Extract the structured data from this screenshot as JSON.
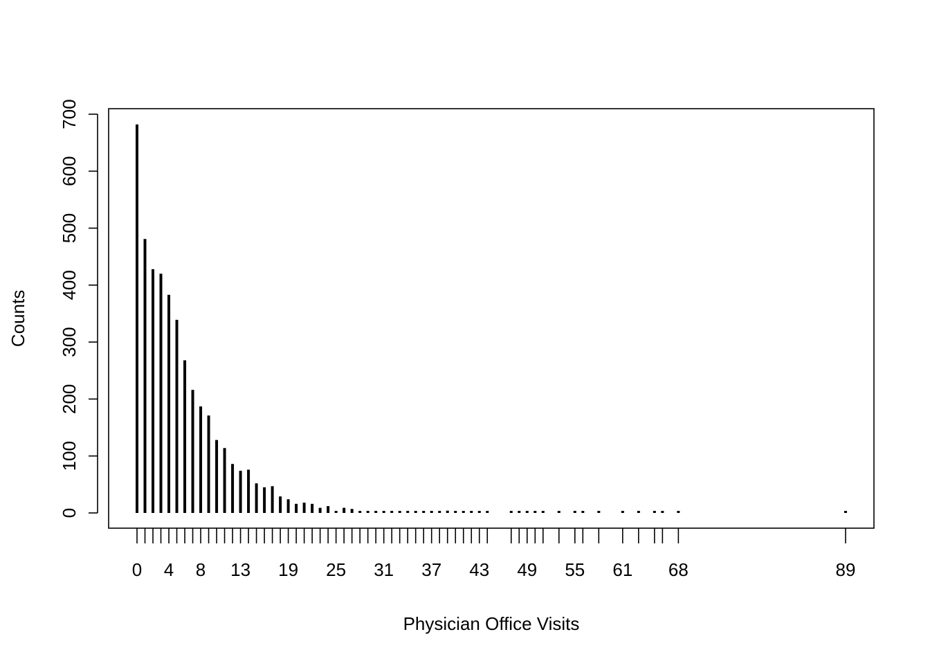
{
  "chart_data": {
    "type": "bar",
    "title": "",
    "xlabel": "Physician Office Visits",
    "ylabel": "Counts",
    "ylim": [
      0,
      700
    ],
    "yticks": [
      0,
      100,
      200,
      300,
      400,
      500,
      600,
      700
    ],
    "xlim": [
      -0.5,
      89.5
    ],
    "x_tick_labels": [
      "0",
      "4",
      "8",
      "13",
      "19",
      "25",
      "31",
      "37",
      "43",
      "49",
      "55",
      "61",
      "68",
      "89"
    ],
    "grid": false,
    "legend": "none",
    "x": [
      0,
      1,
      2,
      3,
      4,
      5,
      6,
      7,
      8,
      9,
      10,
      11,
      12,
      13,
      14,
      15,
      16,
      17,
      18,
      19,
      20,
      21,
      22,
      23,
      24,
      25,
      26,
      27,
      28,
      29,
      30,
      31,
      32,
      33,
      34,
      35,
      36,
      37,
      38,
      39,
      40,
      41,
      42,
      43,
      44,
      47,
      48,
      49,
      50,
      51,
      53,
      55,
      56,
      58,
      61,
      63,
      65,
      66,
      68,
      89
    ],
    "values": [
      682,
      481,
      428,
      420,
      383,
      339,
      268,
      216,
      187,
      171,
      128,
      114,
      86,
      74,
      76,
      52,
      45,
      47,
      29,
      24,
      16,
      18,
      16,
      9,
      12,
      3,
      9,
      7,
      3,
      2,
      3,
      2,
      1,
      1,
      1,
      1,
      1,
      1,
      1,
      4,
      1,
      1,
      2,
      1,
      1,
      1,
      1,
      1,
      1,
      1,
      1,
      1,
      1,
      1,
      1,
      1,
      1,
      1,
      1,
      1
    ],
    "color": "#000000"
  }
}
